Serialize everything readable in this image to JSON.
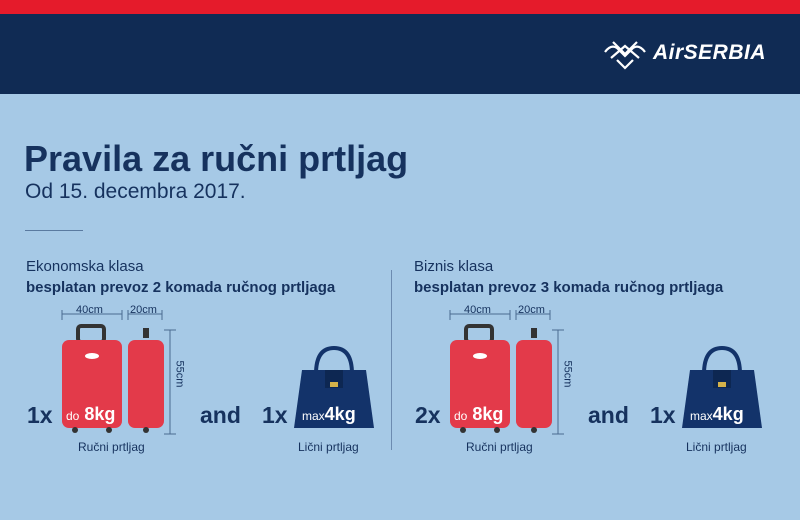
{
  "brand": {
    "name": "AirSERBIA",
    "colors": {
      "red": "#e51b2b",
      "navy": "#102b54",
      "background": "#a6c9e6",
      "suitcase": "#e33a4a",
      "bag": "#13336a"
    }
  },
  "title": "Pravila za ručni prtljag",
  "subtitle": "Od 15. decembra 2017.",
  "panels": [
    {
      "klasa": "Ekonomska klasa",
      "desc": "besplatan prevoz 2 komada ručnog prtljaga",
      "hand_count": "1x",
      "hand_prefix": "do",
      "hand_weight": "8kg",
      "width": "40cm",
      "depth": "20cm",
      "height": "55cm",
      "hand_label": "Ručni prtljag",
      "and": "and",
      "personal_count": "1x",
      "personal_prefix": "max",
      "personal_weight": "4kg",
      "personal_label": "Lični prtljag"
    },
    {
      "klasa": "Biznis klasa",
      "desc": "besplatan prevoz 3 komada ručnog prtljaga",
      "hand_count": "2x",
      "hand_prefix": "do",
      "hand_weight": "8kg",
      "width": "40cm",
      "depth": "20cm",
      "height": "55cm",
      "hand_label": "Ručni prtljag",
      "and": "and",
      "personal_count": "1x",
      "personal_prefix": "max",
      "personal_weight": "4kg",
      "personal_label": "Lični prtljag"
    }
  ]
}
